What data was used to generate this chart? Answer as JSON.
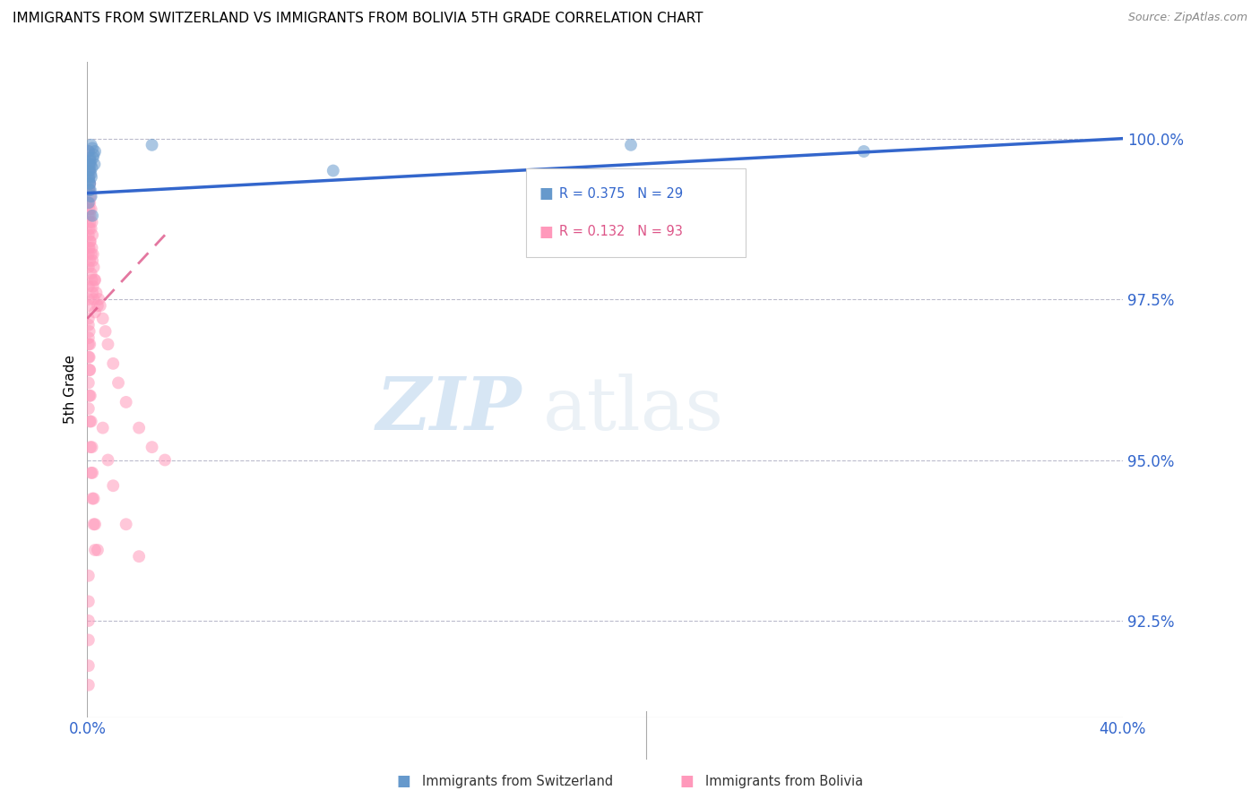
{
  "title": "IMMIGRANTS FROM SWITZERLAND VS IMMIGRANTS FROM BOLIVIA 5TH GRADE CORRELATION CHART",
  "source": "Source: ZipAtlas.com",
  "ylabel": "5th Grade",
  "xlim": [
    0.0,
    40.0
  ],
  "ylim": [
    91.0,
    101.2
  ],
  "legend_labels": [
    "Immigrants from Switzerland",
    "Immigrants from Bolivia"
  ],
  "r_switzerland": 0.375,
  "n_switzerland": 29,
  "r_bolivia": 0.132,
  "n_bolivia": 93,
  "swiss_color": "#6699CC",
  "bolivia_color": "#FF99BB",
  "trendline_swiss_color": "#3366CC",
  "trendline_bolivia_color": "#DD5588",
  "watermark_zip": "ZIP",
  "watermark_atlas": "atlas",
  "ytick_positions": [
    92.5,
    95.0,
    97.5,
    100.0
  ],
  "ytick_labels": [
    "92.5%",
    "95.0%",
    "97.5%",
    "100.0%"
  ],
  "swiss_x": [
    0.05,
    0.1,
    0.15,
    0.2,
    0.25,
    0.3,
    0.05,
    0.08,
    0.12,
    0.18,
    0.22,
    0.28,
    0.06,
    0.09,
    0.11,
    0.14,
    0.07,
    0.16,
    0.13,
    0.08,
    0.1,
    0.2,
    0.15,
    0.05,
    0.12,
    2.5,
    9.5,
    21.0,
    30.0
  ],
  "swiss_y": [
    99.8,
    99.7,
    99.9,
    99.85,
    99.75,
    99.8,
    99.5,
    99.6,
    99.65,
    99.55,
    99.7,
    99.6,
    99.4,
    99.3,
    99.5,
    99.45,
    99.35,
    99.4,
    99.6,
    99.2,
    99.3,
    98.8,
    99.1,
    99.0,
    99.2,
    99.9,
    99.5,
    99.9,
    99.8
  ],
  "bolivia_x": [
    0.05,
    0.05,
    0.05,
    0.05,
    0.05,
    0.05,
    0.05,
    0.05,
    0.08,
    0.08,
    0.08,
    0.08,
    0.08,
    0.1,
    0.1,
    0.1,
    0.1,
    0.1,
    0.12,
    0.12,
    0.12,
    0.15,
    0.15,
    0.15,
    0.15,
    0.18,
    0.18,
    0.18,
    0.2,
    0.2,
    0.2,
    0.22,
    0.22,
    0.25,
    0.25,
    0.28,
    0.3,
    0.3,
    0.35,
    0.4,
    0.45,
    0.5,
    0.6,
    0.7,
    0.8,
    1.0,
    1.2,
    1.5,
    2.0,
    2.5,
    3.0,
    0.05,
    0.05,
    0.05,
    0.05,
    0.05,
    0.05,
    0.08,
    0.08,
    0.1,
    0.1,
    0.12,
    0.15,
    0.18,
    0.2,
    0.25,
    0.3,
    0.4,
    0.6,
    0.8,
    1.0,
    1.5,
    2.0,
    0.05,
    0.05,
    0.05,
    0.05,
    0.05,
    0.05,
    0.08,
    0.08,
    0.1,
    0.12,
    0.15,
    0.2,
    0.25,
    0.3,
    0.05,
    0.05,
    0.05,
    0.05,
    0.05,
    0.05
  ],
  "bolivia_y": [
    99.8,
    99.6,
    99.4,
    99.2,
    99.0,
    98.8,
    98.5,
    98.2,
    99.5,
    99.2,
    98.9,
    98.6,
    98.3,
    99.3,
    99.0,
    98.7,
    98.4,
    98.1,
    99.1,
    98.8,
    98.4,
    98.9,
    98.6,
    98.2,
    97.9,
    98.7,
    98.3,
    97.8,
    98.5,
    98.1,
    97.6,
    98.2,
    97.7,
    98.0,
    97.5,
    97.8,
    97.8,
    97.3,
    97.6,
    97.4,
    97.5,
    97.4,
    97.2,
    97.0,
    96.8,
    96.5,
    96.2,
    95.9,
    95.5,
    95.2,
    95.0,
    97.5,
    97.2,
    96.9,
    96.6,
    96.2,
    95.8,
    97.0,
    96.6,
    96.8,
    96.4,
    96.0,
    95.6,
    95.2,
    94.8,
    94.4,
    94.0,
    93.6,
    95.5,
    95.0,
    94.6,
    94.0,
    93.5,
    98.3,
    98.0,
    97.7,
    97.4,
    97.1,
    96.8,
    96.4,
    96.0,
    95.6,
    95.2,
    94.8,
    94.4,
    94.0,
    93.6,
    93.2,
    92.8,
    92.5,
    92.2,
    91.8,
    91.5
  ]
}
